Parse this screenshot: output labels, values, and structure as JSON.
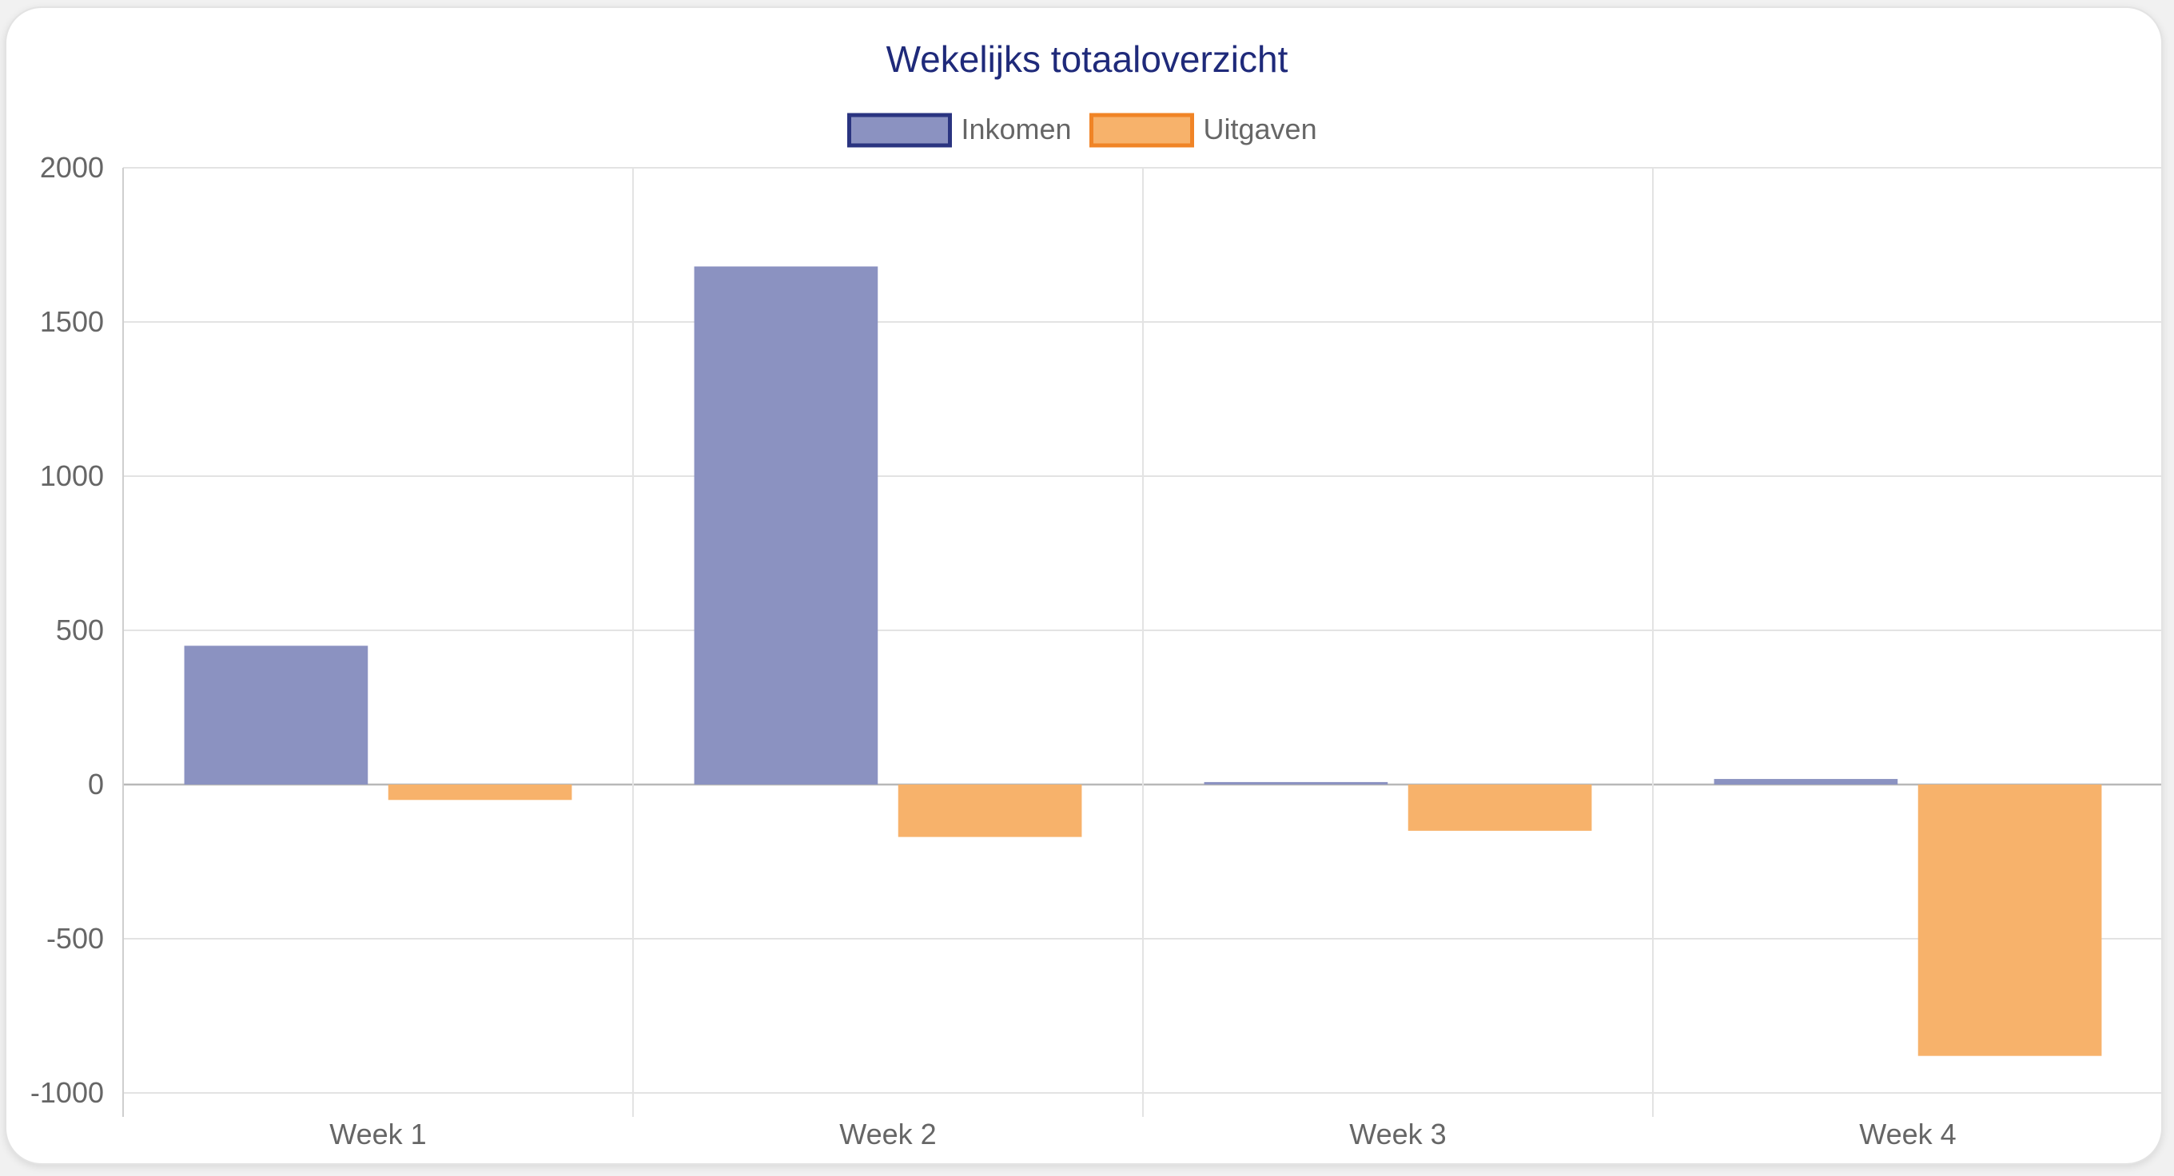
{
  "chart_data": {
    "type": "bar",
    "title": "Wekelijks totaaloverzicht",
    "categories": [
      "Week 1",
      "Week 2",
      "Week 3",
      "Week 4"
    ],
    "series": [
      {
        "name": "Inkomen",
        "values": [
          450,
          1680,
          8,
          18
        ],
        "color": "#8b92c1",
        "border_color": "#2a3480"
      },
      {
        "name": "Uitgaven",
        "values": [
          -50,
          -170,
          -150,
          -880
        ],
        "color": "#f7b26b",
        "border_color": "#f08426"
      }
    ],
    "ylim": [
      -1000,
      2000
    ],
    "yticks": [
      "2000",
      "1500",
      "1000",
      "500",
      "0",
      "-500",
      "-1000"
    ],
    "grid": true,
    "legend_position": "top-center"
  }
}
